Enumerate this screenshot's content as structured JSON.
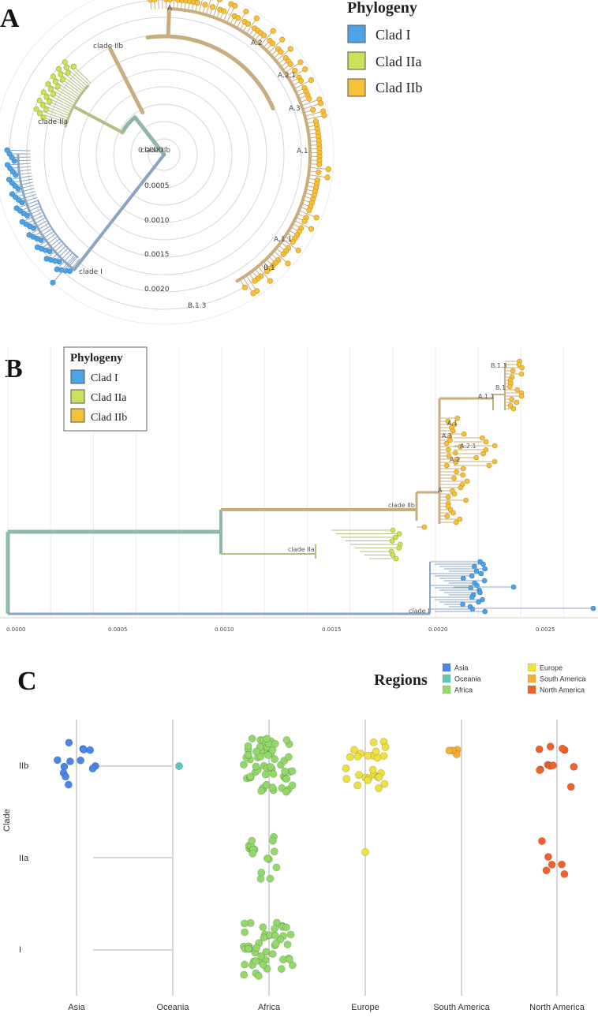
{
  "colors": {
    "clade_I": "#4ea3e6",
    "clade_IIa": "#cde25a",
    "clade_IIb": "#f5c13a",
    "branch_I": "#8aa5c3",
    "branch_IIa": "#b4bd86",
    "branch_IIb": "#c8ad80",
    "branch_root": "#8fb8a6",
    "asia": "#4a86e8",
    "oceania": "#5cc8b6",
    "africa": "#93d96a",
    "europe": "#ede140",
    "south_america": "#f2b135",
    "north_america": "#f0612b"
  },
  "panel_a": {
    "letter": "A",
    "legend": {
      "title": "Phylogeny",
      "entries": [
        "Clad I",
        "Clad IIa",
        "Clad IIb"
      ]
    },
    "center_label": "0.0000",
    "center_label2": "clade IIb",
    "radial_ticks": [
      "0.0005",
      "0.0010",
      "0.0015",
      "0.0020"
    ],
    "clade_labels": [
      "clade IIb",
      "clade IIa",
      "clade I"
    ],
    "node_labels": [
      "A",
      "A.2",
      "A.2.1",
      "A.3",
      "A.1",
      "A.1.1",
      "B.1",
      "B.1.3"
    ]
  },
  "panel_b": {
    "letter": "B",
    "legend": {
      "title": "Phylogeny",
      "entries": [
        "Clad I",
        "Clad IIa",
        "Clad IIb"
      ]
    },
    "x_ticks": [
      "0.0000",
      "0.0005",
      "0.0010",
      "0.0015",
      "0.0020",
      "0.0025"
    ],
    "clade_labels": [
      "clade IIb",
      "clade IIa",
      "clade I"
    ],
    "node_labels": [
      "B.1.3",
      "B.1",
      "A.1.1",
      "A.1",
      "A.3",
      "A.2.1",
      "A.2",
      "A"
    ]
  },
  "chart_data": {
    "type": "scatter",
    "title": "Regions",
    "xlabel": "",
    "ylabel": "Clade",
    "categories": [
      "Asia",
      "Oceania",
      "Africa",
      "Europe",
      "South America",
      "North America"
    ],
    "y_categories": [
      "IIb",
      "IIa",
      "I"
    ],
    "legend": [
      "Asia",
      "Oceania",
      "Africa",
      "Europe",
      "South America",
      "North America"
    ],
    "legend_position": "top-right",
    "grid": true,
    "counts": {
      "Asia": {
        "IIb": 13,
        "IIa": 0,
        "I": 0
      },
      "Oceania": {
        "IIb": 1,
        "IIa": 0,
        "I": 0
      },
      "Africa": {
        "IIb": 60,
        "IIa": 18,
        "I": 48
      },
      "Europe": {
        "IIb": 26,
        "IIa": 1,
        "I": 0
      },
      "South America": {
        "IIb": 4,
        "IIa": 0,
        "I": 0
      },
      "North America": {
        "IIb": 11,
        "IIa": 6,
        "I": 0
      }
    }
  }
}
